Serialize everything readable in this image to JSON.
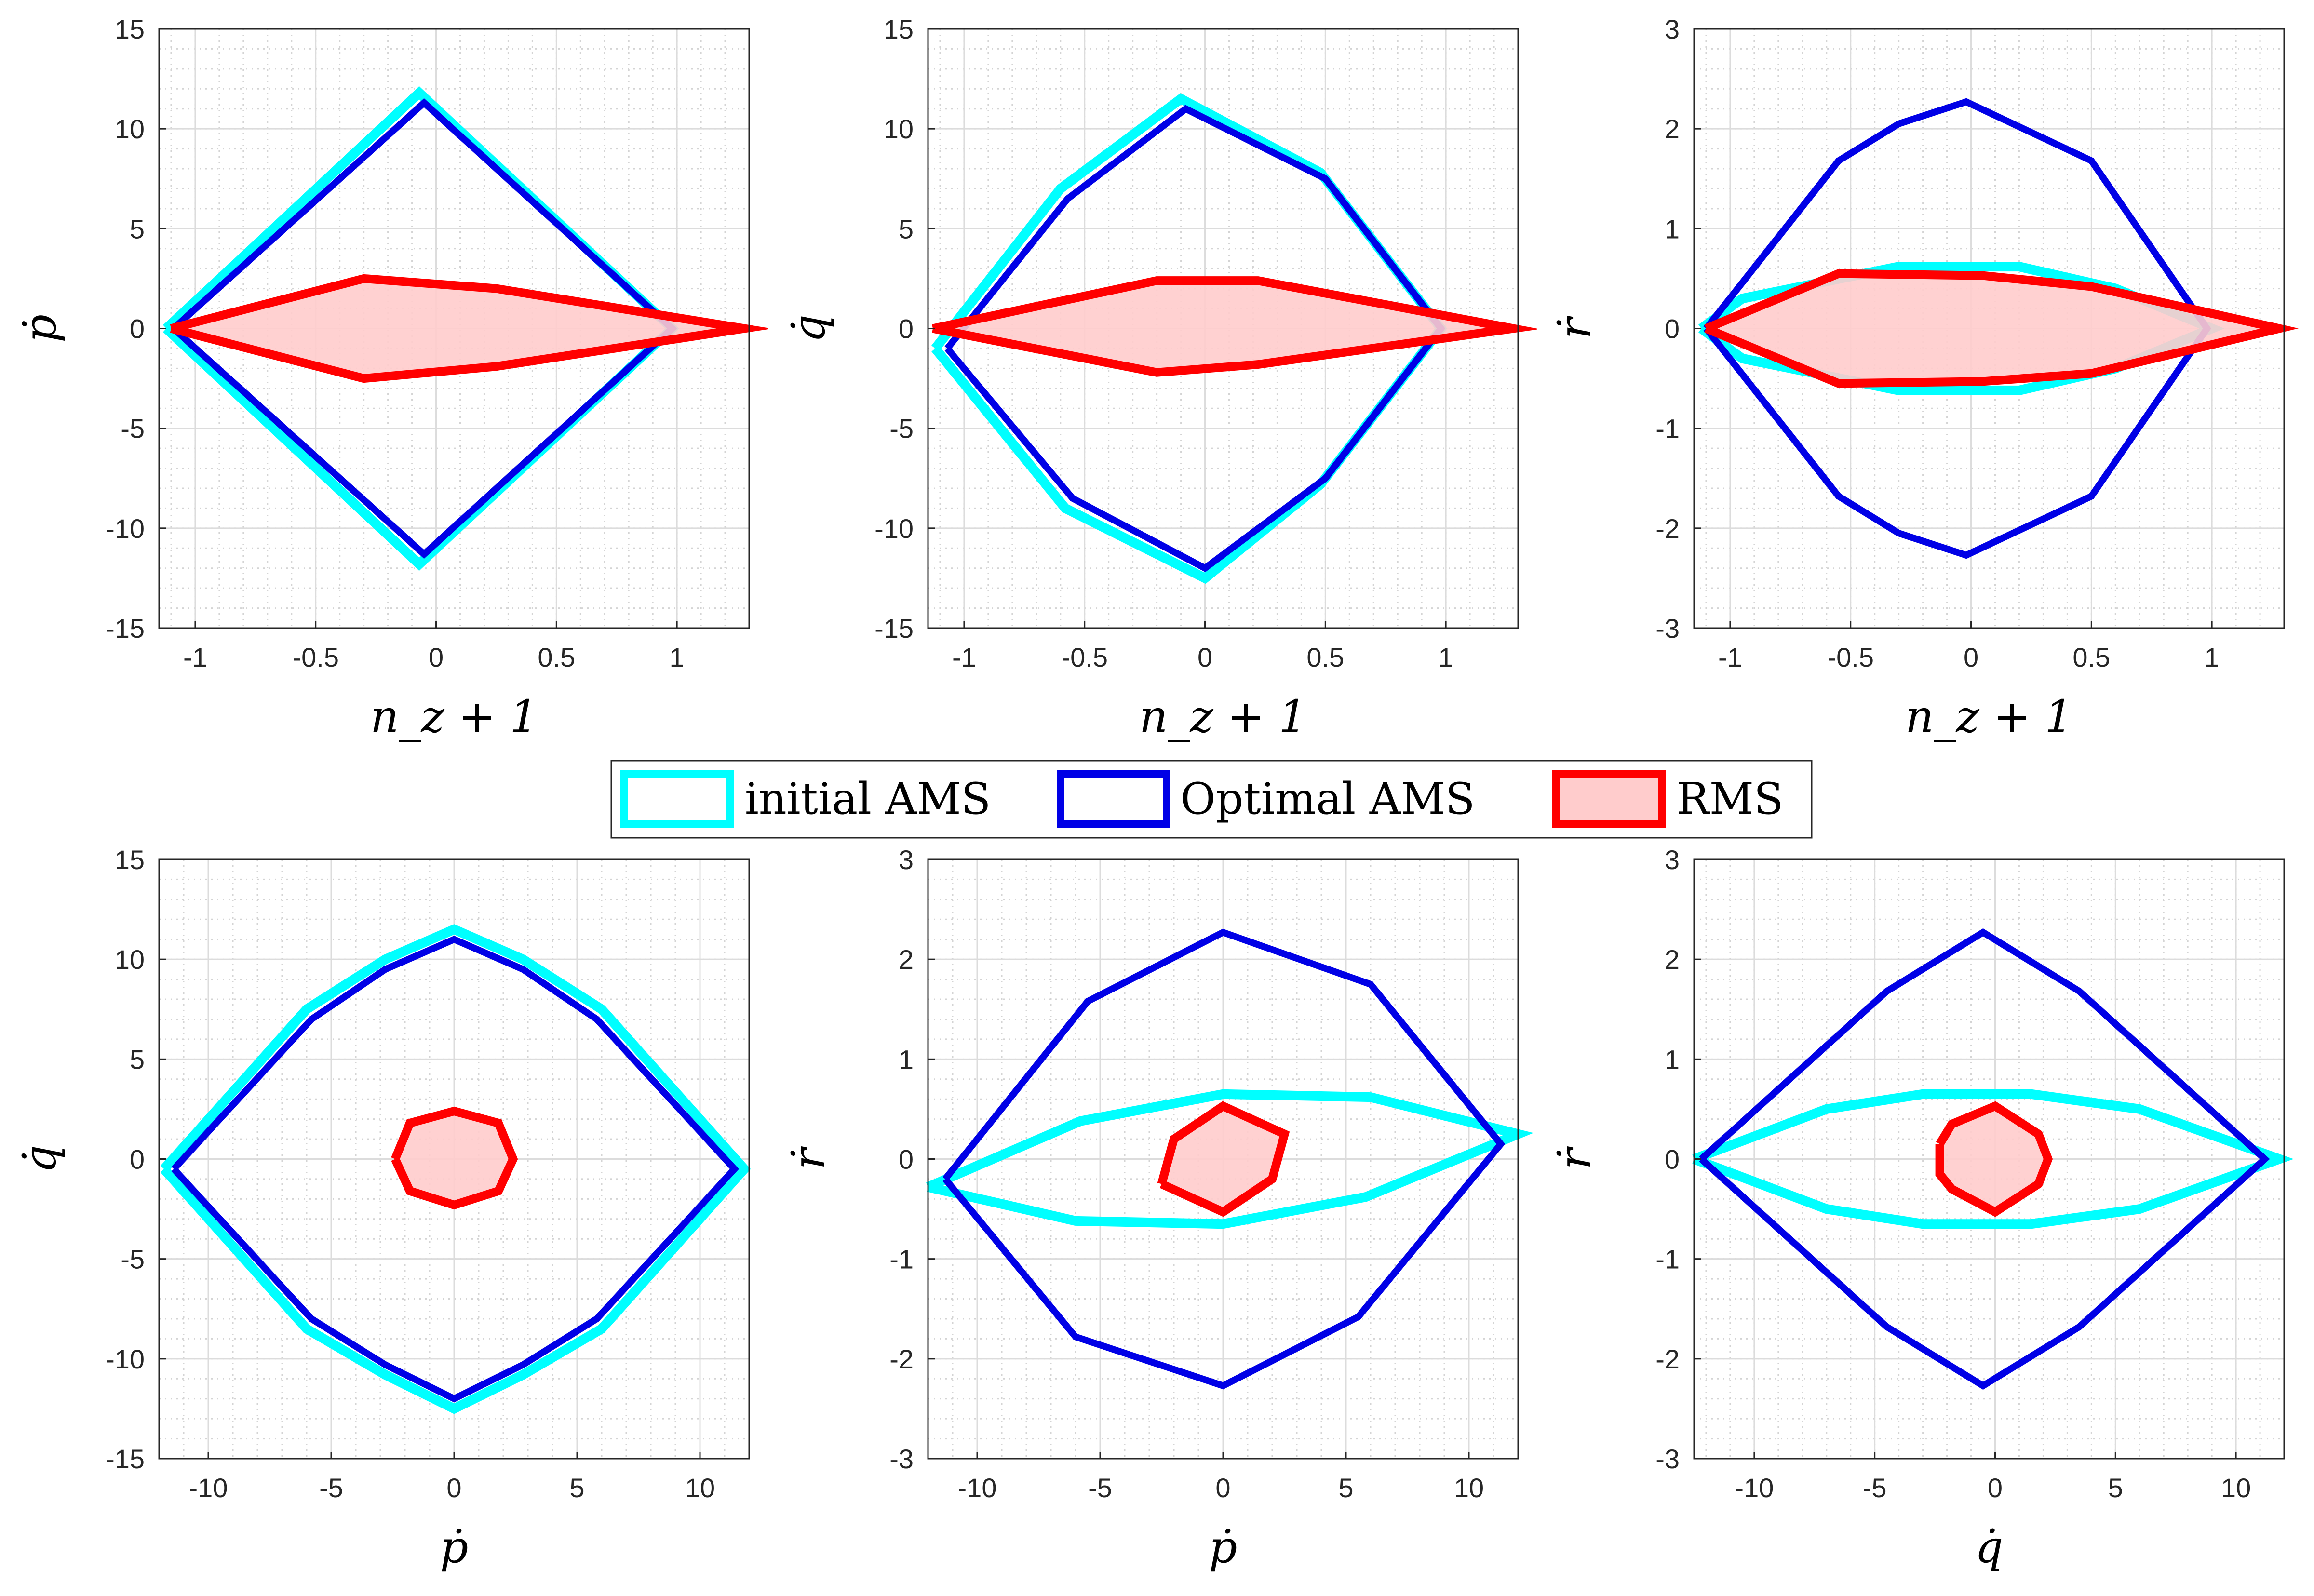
{
  "colors": {
    "initial": "#00ffff",
    "optimal": "#0000e6",
    "rms": "#ff0000",
    "rms_fill": "#ffcccc"
  },
  "legend": {
    "initial": "initial AMS",
    "optimal": "Optimal AMS",
    "rms": "RMS"
  },
  "chart_data": [
    {
      "type": "line",
      "xlabel": "n_z + 1",
      "ylabel": "ṗ",
      "xlim": [
        -1.15,
        1.3
      ],
      "ylim": [
        -15,
        15
      ],
      "xticks": [
        -1,
        -0.5,
        0,
        0.5,
        1
      ],
      "xticklabels": [
        "-1",
        "-0.5",
        "0",
        "0.5",
        "1"
      ],
      "yticks": [
        -15,
        -10,
        -5,
        0,
        5,
        10,
        15
      ],
      "yticklabels": [
        "-15",
        "-10",
        "-5",
        "0",
        "5",
        "10",
        "15"
      ],
      "series": [
        {
          "name": "initial AMS",
          "points": [
            [
              -1.12,
              0
            ],
            [
              -0.07,
              11.8
            ],
            [
              0.98,
              0
            ],
            [
              -0.07,
              -11.8
            ],
            [
              -1.12,
              0
            ]
          ]
        },
        {
          "name": "Optimal AMS",
          "points": [
            [
              -1.09,
              0
            ],
            [
              -0.05,
              11.3
            ],
            [
              0.98,
              0
            ],
            [
              -0.05,
              -11.3
            ],
            [
              -1.09,
              0
            ]
          ]
        },
        {
          "name": "RMS",
          "points": [
            [
              -1.1,
              0
            ],
            [
              -0.3,
              2.5
            ],
            [
              0.25,
              2
            ],
            [
              1.28,
              0
            ],
            [
              0.25,
              -1.9
            ],
            [
              -0.3,
              -2.5
            ],
            [
              -1.1,
              0
            ]
          ]
        }
      ]
    },
    {
      "type": "line",
      "xlabel": "n_z + 1",
      "ylabel": "q̇",
      "xlim": [
        -1.15,
        1.3
      ],
      "ylim": [
        -15,
        15
      ],
      "xticks": [
        -1,
        -0.5,
        0,
        0.5,
        1
      ],
      "xticklabels": [
        "-1",
        "-0.5",
        "0",
        "0.5",
        "1"
      ],
      "yticks": [
        -15,
        -10,
        -5,
        0,
        5,
        10,
        15
      ],
      "yticklabels": [
        "-15",
        "-10",
        "-5",
        "0",
        "5",
        "10",
        "15"
      ],
      "series": [
        {
          "name": "initial AMS",
          "points": [
            [
              -1.12,
              -1
            ],
            [
              -0.6,
              7
            ],
            [
              -0.1,
              11.5
            ],
            [
              0.48,
              7.8
            ],
            [
              0.98,
              0
            ],
            [
              0.48,
              -7.8
            ],
            [
              0,
              -12.5
            ],
            [
              -0.58,
              -9
            ],
            [
              -1.12,
              -1
            ]
          ]
        },
        {
          "name": "Optimal AMS",
          "points": [
            [
              -1.07,
              -1
            ],
            [
              -0.57,
              6.5
            ],
            [
              -0.08,
              11
            ],
            [
              0.5,
              7.5
            ],
            [
              0.98,
              0
            ],
            [
              0.5,
              -7.5
            ],
            [
              0,
              -12
            ],
            [
              -0.55,
              -8.5
            ],
            [
              -1.07,
              -1
            ]
          ]
        },
        {
          "name": "RMS",
          "points": [
            [
              -1.13,
              0
            ],
            [
              -0.2,
              2.4
            ],
            [
              0.22,
              2.4
            ],
            [
              1.28,
              0
            ],
            [
              0.22,
              -1.8
            ],
            [
              -0.2,
              -2.2
            ],
            [
              -1.13,
              0
            ]
          ]
        }
      ]
    },
    {
      "type": "line",
      "xlabel": "n_z + 1",
      "ylabel": "ṙ",
      "xlim": [
        -1.15,
        1.3
      ],
      "ylim": [
        -3,
        3
      ],
      "xticks": [
        -1,
        -0.5,
        0,
        0.5,
        1
      ],
      "xticklabels": [
        "-1",
        "-0.5",
        "0",
        "0.5",
        "1"
      ],
      "yticks": [
        -3,
        -2,
        -1,
        0,
        1,
        2,
        3
      ],
      "yticklabels": [
        "-3",
        "-2",
        "-1",
        "0",
        "1",
        "2",
        "3"
      ],
      "series": [
        {
          "name": "initial AMS",
          "points": [
            [
              -1.12,
              0
            ],
            [
              -0.95,
              0.3
            ],
            [
              -0.3,
              0.62
            ],
            [
              0.2,
              0.62
            ],
            [
              0.6,
              0.4
            ],
            [
              1.0,
              0
            ],
            [
              0.6,
              -0.4
            ],
            [
              0.2,
              -0.62
            ],
            [
              -0.3,
              -0.62
            ],
            [
              -0.95,
              -0.3
            ],
            [
              -1.12,
              0
            ]
          ]
        },
        {
          "name": "Optimal AMS",
          "points": [
            [
              -1.1,
              0
            ],
            [
              -0.55,
              1.68
            ],
            [
              -0.3,
              2.05
            ],
            [
              -0.02,
              2.27
            ],
            [
              0.5,
              1.68
            ],
            [
              0.98,
              0
            ],
            [
              0.5,
              -1.68
            ],
            [
              -0.02,
              -2.27
            ],
            [
              -0.3,
              -2.05
            ],
            [
              -0.55,
              -1.68
            ],
            [
              -1.1,
              0
            ]
          ]
        },
        {
          "name": "RMS",
          "points": [
            [
              -1.1,
              0
            ],
            [
              -0.55,
              0.55
            ],
            [
              0.05,
              0.53
            ],
            [
              0.5,
              0.42
            ],
            [
              1.28,
              0
            ],
            [
              0.5,
              -0.45
            ],
            [
              0.05,
              -0.53
            ],
            [
              -0.55,
              -0.55
            ],
            [
              -1.1,
              0
            ]
          ]
        }
      ]
    },
    {
      "type": "line",
      "xlabel": "ṗ",
      "ylabel": "q̇",
      "xlim": [
        -12,
        12
      ],
      "ylim": [
        -15,
        15
      ],
      "xticks": [
        -10,
        -5,
        0,
        5,
        10
      ],
      "xticklabels": [
        "-10",
        "-5",
        "0",
        "5",
        "10"
      ],
      "yticks": [
        -15,
        -10,
        -5,
        0,
        5,
        10,
        15
      ],
      "yticklabels": [
        "-15",
        "-10",
        "-5",
        "0",
        "5",
        "10",
        "15"
      ],
      "series": [
        {
          "name": "initial AMS",
          "points": [
            [
              -11.8,
              -0.5
            ],
            [
              -6,
              7.5
            ],
            [
              -2.8,
              10
            ],
            [
              0,
              11.5
            ],
            [
              2.8,
              10
            ],
            [
              6,
              7.5
            ],
            [
              11.8,
              -0.5
            ],
            [
              6,
              -8.5
            ],
            [
              2.8,
              -10.8
            ],
            [
              0,
              -12.5
            ],
            [
              -2.8,
              -10.8
            ],
            [
              -6,
              -8.5
            ],
            [
              -11.8,
              -0.5
            ]
          ]
        },
        {
          "name": "Optimal AMS",
          "points": [
            [
              -11.4,
              -0.5
            ],
            [
              -5.8,
              7
            ],
            [
              -2.8,
              9.5
            ],
            [
              0,
              11
            ],
            [
              2.8,
              9.5
            ],
            [
              5.8,
              7
            ],
            [
              11.4,
              -0.5
            ],
            [
              5.8,
              -8
            ],
            [
              2.8,
              -10.3
            ],
            [
              0,
              -12
            ],
            [
              -2.8,
              -10.3
            ],
            [
              -5.8,
              -8
            ],
            [
              -11.4,
              -0.5
            ]
          ]
        },
        {
          "name": "RMS",
          "points": [
            [
              -2.4,
              0
            ],
            [
              -1.8,
              1.8
            ],
            [
              0,
              2.4
            ],
            [
              1.8,
              1.8
            ],
            [
              2.4,
              0
            ],
            [
              1.8,
              -1.6
            ],
            [
              0,
              -2.3
            ],
            [
              -1.8,
              -1.6
            ],
            [
              -2.4,
              0
            ]
          ]
        }
      ]
    },
    {
      "type": "line",
      "xlabel": "ṗ",
      "ylabel": "ṙ",
      "xlim": [
        -12,
        12
      ],
      "ylim": [
        -3,
        3
      ],
      "xticks": [
        -10,
        -5,
        0,
        5,
        10
      ],
      "xticklabels": [
        "-10",
        "-5",
        "0",
        "5",
        "10"
      ],
      "yticks": [
        -3,
        -2,
        -1,
        0,
        1,
        2,
        3
      ],
      "yticklabels": [
        "-3",
        "-2",
        "-1",
        "0",
        "1",
        "2",
        "3"
      ],
      "series": [
        {
          "name": "initial AMS",
          "points": [
            [
              -12,
              -0.28
            ],
            [
              -5.8,
              0.38
            ],
            [
              0,
              0.65
            ],
            [
              6,
              0.62
            ],
            [
              12,
              0.25
            ],
            [
              5.8,
              -0.38
            ],
            [
              0,
              -0.65
            ],
            [
              -6,
              -0.62
            ],
            [
              -12,
              -0.28
            ]
          ]
        },
        {
          "name": "Optimal AMS",
          "points": [
            [
              -11.3,
              -0.2
            ],
            [
              -5.5,
              1.58
            ],
            [
              0,
              2.27
            ],
            [
              6,
              1.75
            ],
            [
              11.3,
              0.15
            ],
            [
              5.5,
              -1.58
            ],
            [
              0,
              -2.27
            ],
            [
              -6,
              -1.78
            ],
            [
              -11.3,
              -0.2
            ]
          ]
        },
        {
          "name": "RMS",
          "points": [
            [
              -2.5,
              -0.25
            ],
            [
              -2,
              0.2
            ],
            [
              0,
              0.53
            ],
            [
              2.5,
              0.25
            ],
            [
              2,
              -0.2
            ],
            [
              0,
              -0.53
            ],
            [
              -2.5,
              -0.25
            ]
          ]
        }
      ]
    },
    {
      "type": "line",
      "xlabel": "q̇",
      "ylabel": "ṙ",
      "xlim": [
        -12.5,
        12
      ],
      "ylim": [
        -3,
        3
      ],
      "xticks": [
        -10,
        -5,
        0,
        5,
        10
      ],
      "xticklabels": [
        "-10",
        "-5",
        "0",
        "5",
        "10"
      ],
      "yticks": [
        -3,
        -2,
        -1,
        0,
        1,
        2,
        3
      ],
      "yticklabels": [
        "-3",
        "-2",
        "-1",
        "0",
        "1",
        "2",
        "3"
      ],
      "series": [
        {
          "name": "initial AMS",
          "points": [
            [
              -12.5,
              0
            ],
            [
              -7,
              0.5
            ],
            [
              -3,
              0.65
            ],
            [
              1.5,
              0.65
            ],
            [
              6,
              0.5
            ],
            [
              11.8,
              0
            ],
            [
              6,
              -0.5
            ],
            [
              1.5,
              -0.65
            ],
            [
              -3,
              -0.65
            ],
            [
              -7,
              -0.5
            ],
            [
              -12.5,
              0
            ]
          ]
        },
        {
          "name": "Optimal AMS",
          "points": [
            [
              -12.2,
              0
            ],
            [
              -4.5,
              1.68
            ],
            [
              -0.5,
              2.27
            ],
            [
              3.5,
              1.68
            ],
            [
              11.2,
              0
            ],
            [
              3.5,
              -1.68
            ],
            [
              -0.5,
              -2.27
            ],
            [
              -4.5,
              -1.68
            ],
            [
              -12.2,
              0
            ]
          ]
        },
        {
          "name": "RMS",
          "points": [
            [
              -2.3,
              0.15
            ],
            [
              -1.8,
              0.35
            ],
            [
              0,
              0.53
            ],
            [
              1.8,
              0.25
            ],
            [
              2.2,
              0
            ],
            [
              1.8,
              -0.25
            ],
            [
              0,
              -0.53
            ],
            [
              -1.8,
              -0.3
            ],
            [
              -2.3,
              -0.15
            ],
            [
              -2.3,
              0.15
            ]
          ]
        }
      ]
    }
  ]
}
